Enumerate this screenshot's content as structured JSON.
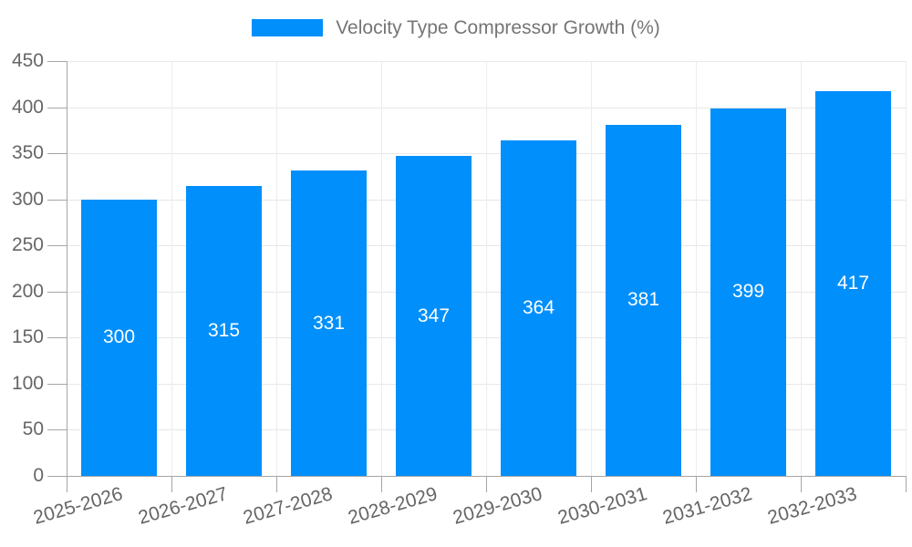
{
  "legend": {
    "series_label": "Velocity Type Compressor Growth (%)",
    "swatch_color": "#008FFB"
  },
  "chart_data": {
    "type": "bar",
    "title": "",
    "categories": [
      "2025-2026",
      "2026-2027",
      "2027-2028",
      "2028-2029",
      "2029-2030",
      "2030-2031",
      "2031-2032",
      "2032-2033"
    ],
    "series": [
      {
        "name": "Velocity Type Compressor Growth (%)",
        "values": [
          300,
          315,
          331,
          347,
          364,
          381,
          399,
          417
        ]
      }
    ],
    "data_labels": [
      "300",
      "315",
      "331",
      "347",
      "364",
      "381",
      "399",
      "417"
    ],
    "xlabel": "",
    "ylabel": "",
    "ylim": [
      0,
      450
    ],
    "ytick_step": 50,
    "ytick_labels": [
      "0",
      "50",
      "100",
      "150",
      "200",
      "250",
      "300",
      "350",
      "400",
      "450"
    ],
    "grid": "on",
    "legend_position": "top",
    "x_label_rotation_deg": -16,
    "colors": {
      "bar": "#008FFB",
      "data_label": "#FFFFFF",
      "axis_label": "#666666",
      "gridline": "#E7E7E7",
      "axis_line": "#A6A6A6",
      "background": "#FFFFFF"
    }
  }
}
